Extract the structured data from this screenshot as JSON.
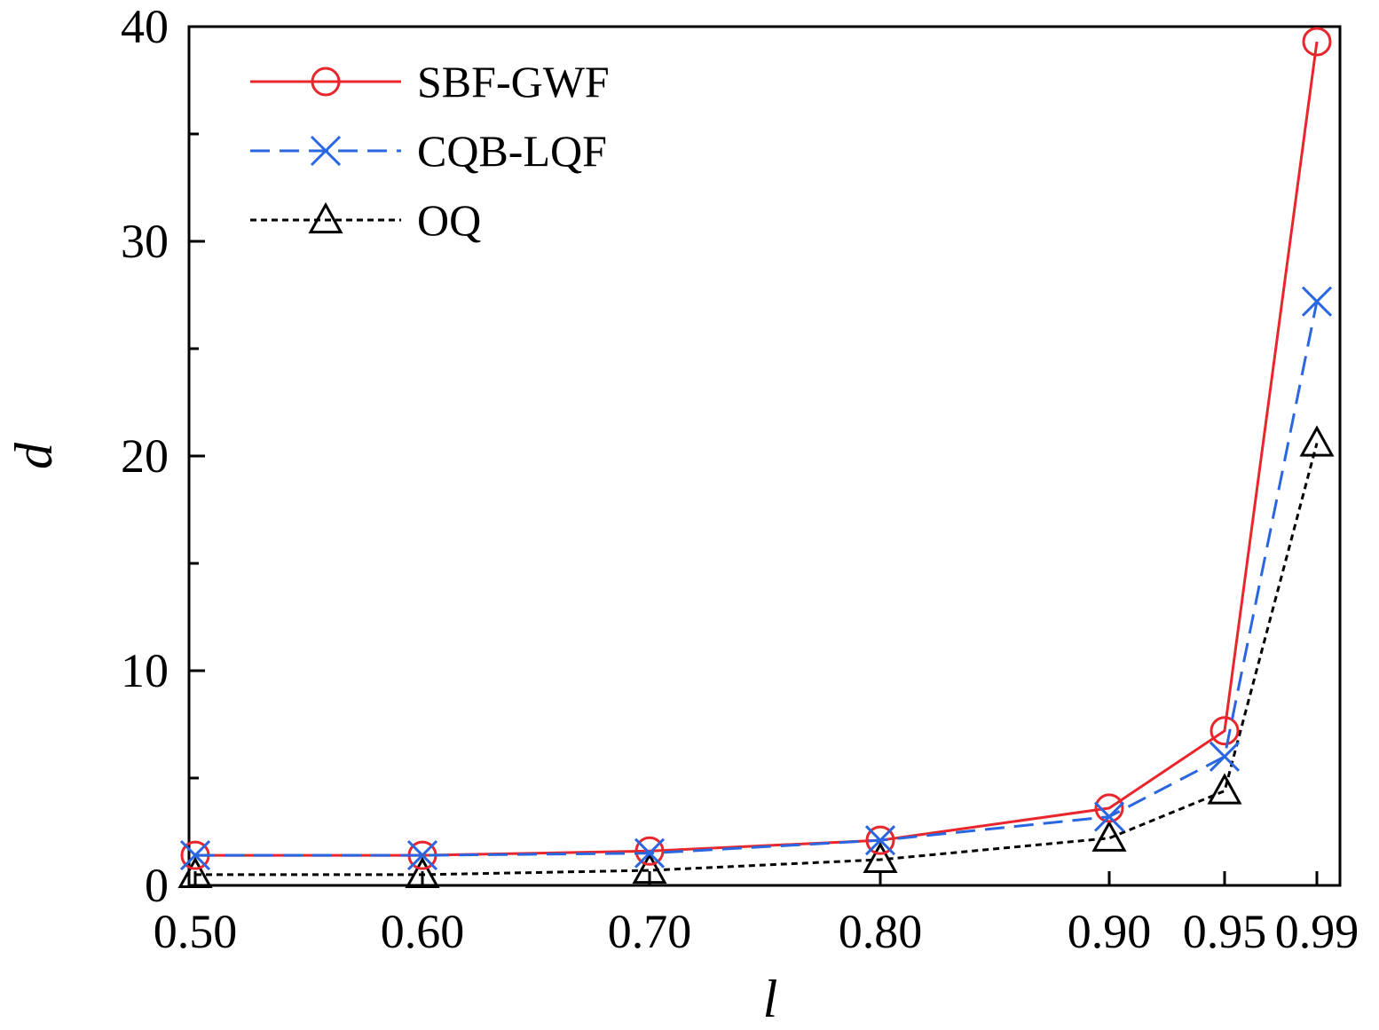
{
  "chart_data": {
    "type": "line",
    "title": "",
    "xlabel": "l",
    "ylabel": "d",
    "categories": [
      "0.50",
      "0.60",
      "0.70",
      "0.80",
      "0.90",
      "0.95",
      "0.99"
    ],
    "ylim": [
      0,
      40
    ],
    "yticks": [
      "0",
      "10",
      "20",
      "30",
      "40"
    ],
    "grid": false,
    "legend_position": "top-left",
    "series": [
      {
        "name": "SBF-GWF",
        "marker": "circle",
        "line": "solid",
        "color": "#e8262b",
        "values": [
          1.4,
          1.4,
          1.6,
          2.1,
          3.6,
          7.2,
          39.3
        ]
      },
      {
        "name": "CQB-LQF",
        "marker": "x",
        "line": "dashed",
        "color": "#2a66e0",
        "values": [
          1.4,
          1.4,
          1.5,
          2.1,
          3.2,
          6.0,
          27.2
        ]
      },
      {
        "name": "OQ",
        "marker": "triangle",
        "line": "dotted",
        "color": "#000000",
        "values": [
          0.5,
          0.5,
          0.7,
          1.2,
          2.2,
          4.4,
          20.6
        ]
      }
    ]
  }
}
